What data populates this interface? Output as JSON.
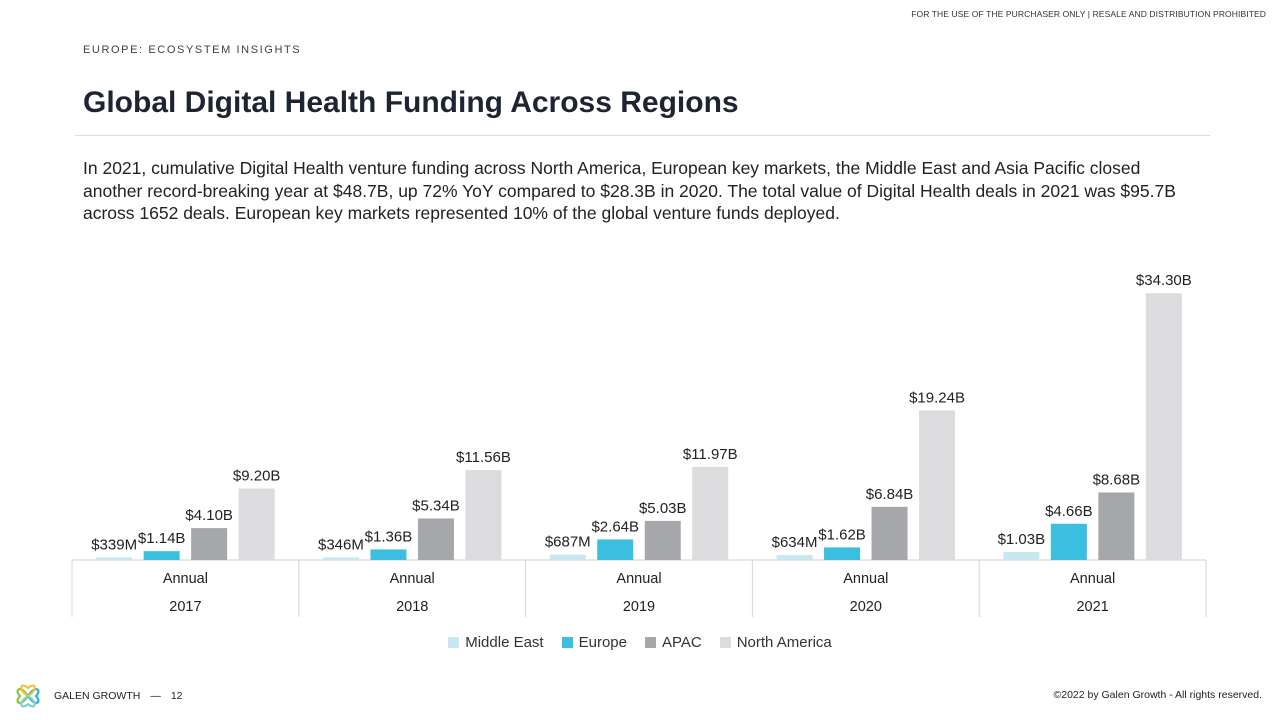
{
  "header": {
    "disclaimer": "FOR THE USE OF THE PURCHASER ONLY | RESALE AND DISTRIBUTION PROHIBITED",
    "eyebrow": "EUROPE: ECOSYSTEM INSIGHTS",
    "title": "Global Digital Health Funding Across Regions"
  },
  "lead": "In 2021, cumulative Digital Health venture funding across North America, European key markets, the Middle East and Asia Pacific closed another record-breaking year at $48.7B, up 72% YoY compared to $28.3B in 2020. The total value of Digital Health deals in 2021 was $95.7B across 1652 deals. European key markets represented 10% of the global venture funds deployed.",
  "footer": {
    "brand": "GALEN GROWTH",
    "page": "12",
    "copyright": "©2022 by Galen Growth  - All rights reserved."
  },
  "chart_data": {
    "type": "bar",
    "categories": [
      "2017",
      "2018",
      "2019",
      "2020",
      "2021"
    ],
    "period_label": "Annual",
    "unit": "$B",
    "ylim": [
      0,
      36
    ],
    "series": [
      {
        "name": "Middle East",
        "color": "#c6e8ee",
        "values": [
          0.339,
          0.346,
          0.687,
          0.634,
          1.03
        ],
        "labels": [
          "$339M",
          "$346M",
          "$687M",
          "$634M",
          "$1.03B"
        ]
      },
      {
        "name": "Europe",
        "color": "#3bbfe0",
        "values": [
          1.14,
          1.36,
          2.64,
          1.62,
          4.66
        ],
        "labels": [
          "$1.14B",
          "$1.36B",
          "$2.64B",
          "$1.62B",
          "$4.66B"
        ]
      },
      {
        "name": "APAC",
        "color": "#a5a7ab",
        "values": [
          4.1,
          5.34,
          5.03,
          6.84,
          8.68
        ],
        "labels": [
          "$4.10B",
          "$5.34B",
          "$5.03B",
          "$6.84B",
          "$8.68B"
        ]
      },
      {
        "name": "North America",
        "color": "#dcdcde",
        "values": [
          9.2,
          11.56,
          11.97,
          19.24,
          34.3
        ],
        "labels": [
          "$9.20B",
          "$11.56B",
          "$11.97B",
          "$19.24B",
          "$34.30B"
        ]
      }
    ],
    "legend_position": "bottom",
    "grid": false
  }
}
